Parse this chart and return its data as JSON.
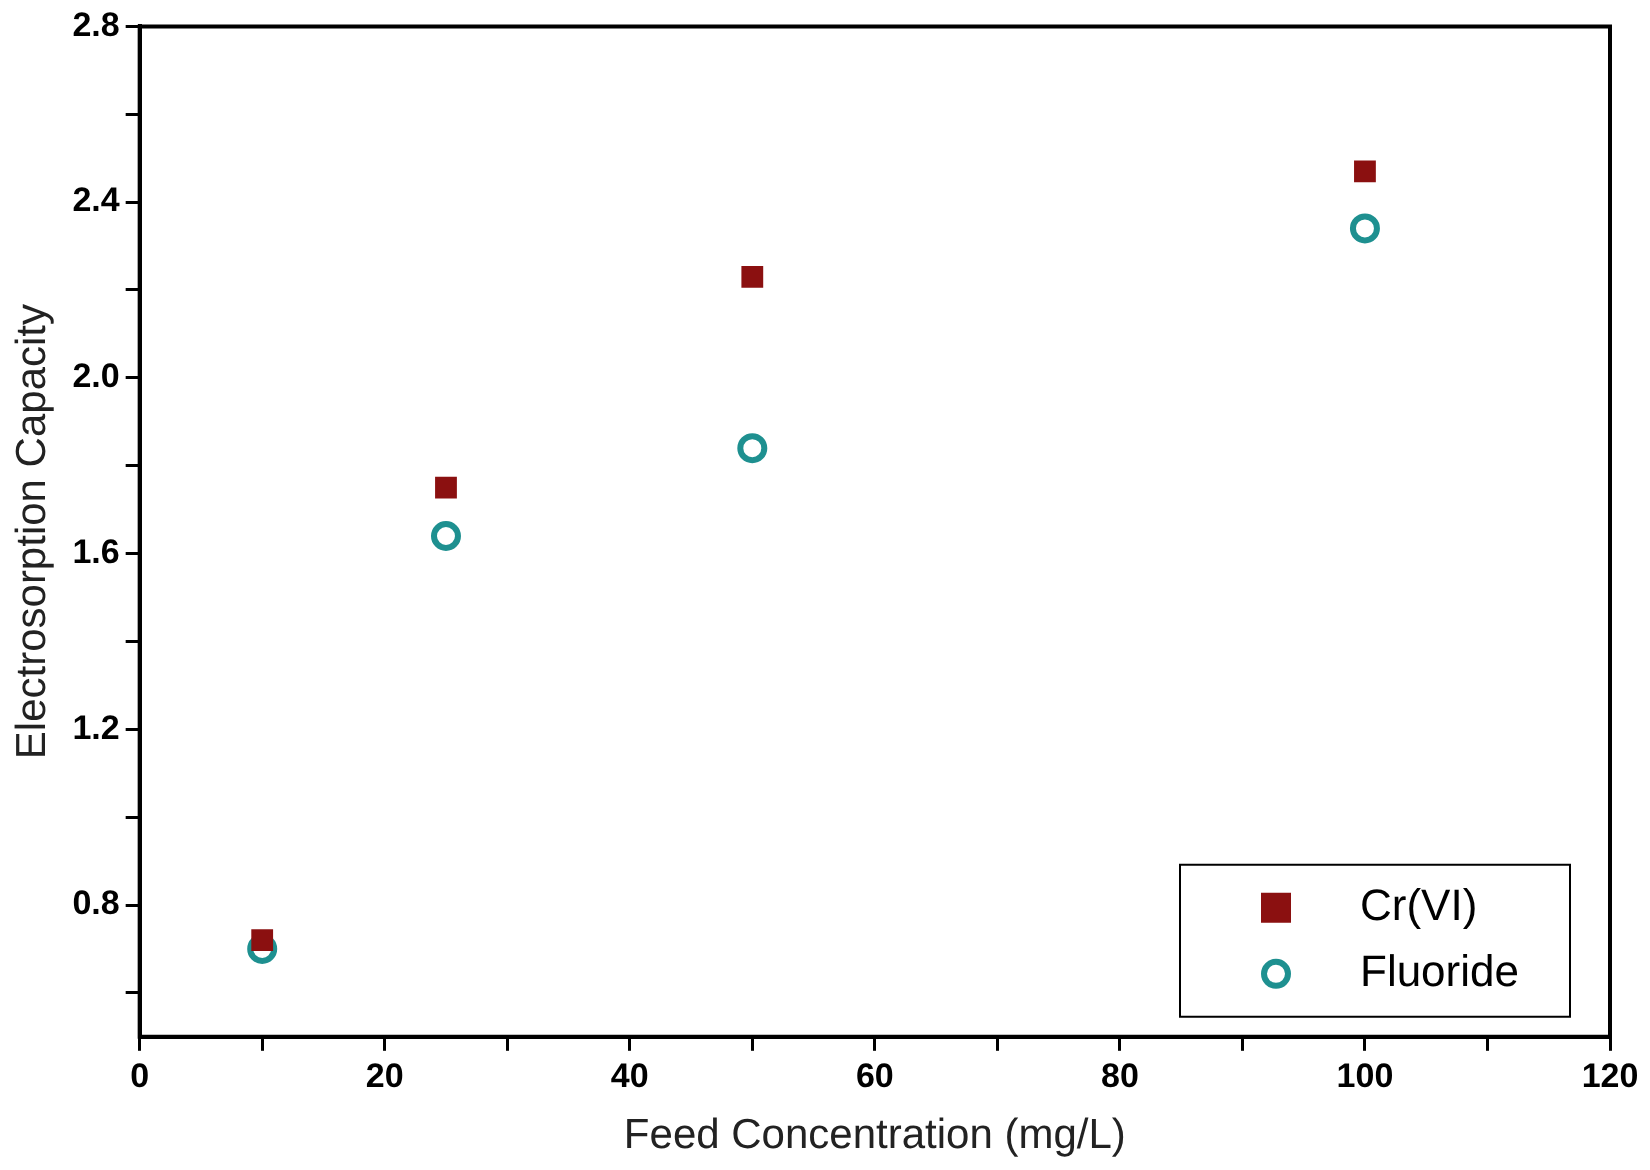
{
  "chart_data": {
    "type": "scatter",
    "xlabel": "Feed Concentration (mg/L)",
    "ylabel": "Electrosorption Capacity",
    "x": [
      10,
      25,
      50,
      100
    ],
    "series": [
      {
        "name": "Cr(VI)",
        "color": "#8b1010",
        "marker": "square",
        "values": [
          0.72,
          1.75,
          2.23,
          2.47
        ]
      },
      {
        "name": "Fluoride",
        "color": "#1e9090",
        "marker": "circle",
        "values": [
          0.7,
          1.64,
          1.84,
          2.34
        ]
      }
    ],
    "xlim": [
      0,
      120
    ],
    "xticks": [
      0,
      {
        "value": 10,
        "label": null
      },
      20,
      {
        "value": 30,
        "label": null
      },
      40,
      {
        "value": 50,
        "label": null
      },
      60,
      {
        "value": 70,
        "label": null
      },
      80,
      {
        "value": 90,
        "label": null
      },
      100,
      {
        "value": 110,
        "label": null
      },
      120
    ],
    "ylim": [
      0.5,
      2.8
    ],
    "yticks": [
      {
        "value": 0.6,
        "label": null
      },
      {
        "value": 0.8,
        "label": "0.8"
      },
      {
        "value": 1.0,
        "label": null
      },
      {
        "value": 1.2,
        "label": "1.2"
      },
      {
        "value": 1.4,
        "label": null
      },
      {
        "value": 1.6,
        "label": "1.6"
      },
      {
        "value": 1.8,
        "label": null
      },
      {
        "value": 2.0,
        "label": "2.0"
      },
      {
        "value": 2.2,
        "label": null
      },
      {
        "value": 2.4,
        "label": "2.4"
      },
      {
        "value": 2.6,
        "label": null
      },
      {
        "value": 2.8,
        "label": "2.8"
      }
    ],
    "grid": false,
    "legend": "bottom right"
  }
}
